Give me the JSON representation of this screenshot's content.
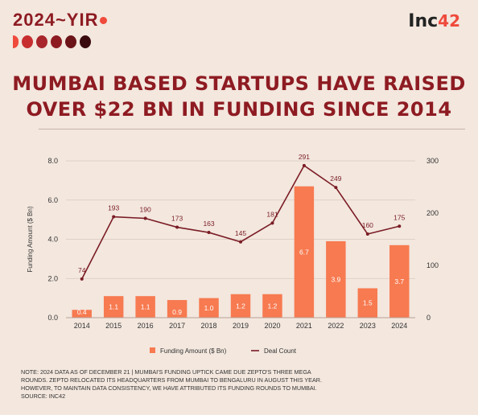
{
  "brand": {
    "title": "2024~YIR",
    "shades": [
      "#EF4A3C",
      "#C72D2F",
      "#A8262B",
      "#8E1B22",
      "#6C1418",
      "#3A0A0E"
    ]
  },
  "logo": {
    "text": "Inc",
    "num": "42"
  },
  "headline": {
    "line1": "MUMBAI BASED STARTUPS HAVE RAISED",
    "line2": "OVER $22 BN IN FUNDING SINCE 2014"
  },
  "note": {
    "line1": "NOTE: 2024 DATA AS OF DECEMBER 21 | MUMBAI'S FUNDING UPTICK CAME DUE ZEPTO'S THREE MEGA",
    "line2": "ROUNDS. ZEPTO RELOCATED ITS HEADQUARTERS FROM MUMBAI TO BENGALURU IN AUGUST THIS YEAR.",
    "line3": "HOWEVER, TO MAINTAIN DATA CONSISTENCY, WE HAVE ATTRIBUTED ITS FUNDING ROUNDS TO MUMBAI.",
    "line4": "SOURCE: INC42"
  },
  "chart_data": {
    "type": "bar",
    "categories": [
      "2014",
      "2015",
      "2016",
      "2017",
      "2018",
      "2019",
      "2020",
      "2021",
      "2022",
      "2023",
      "2024"
    ],
    "series": [
      {
        "name": "Funding Amount ($ Bn)",
        "type": "bar",
        "axis": "left",
        "color": "#F77A50",
        "values": [
          0.4,
          1.1,
          1.1,
          0.9,
          1.0,
          1.2,
          1.2,
          6.7,
          3.9,
          1.5,
          3.7
        ]
      },
      {
        "name": "Deal Count",
        "type": "line",
        "axis": "right",
        "color": "#7A1C24",
        "values": [
          74,
          193,
          190,
          173,
          163,
          145,
          181,
          291,
          249,
          160,
          175
        ]
      }
    ],
    "ylabel": "Funding Amount ($ Bn)",
    "ylim": [
      0,
      8
    ],
    "yticks": [
      "0.0",
      "2.0",
      "4.0",
      "6.0",
      "8.0"
    ],
    "y2lim": [
      0,
      300
    ],
    "y2ticks": [
      "0",
      "100",
      "200",
      "300"
    ],
    "grid": true,
    "legend": "bottom"
  }
}
